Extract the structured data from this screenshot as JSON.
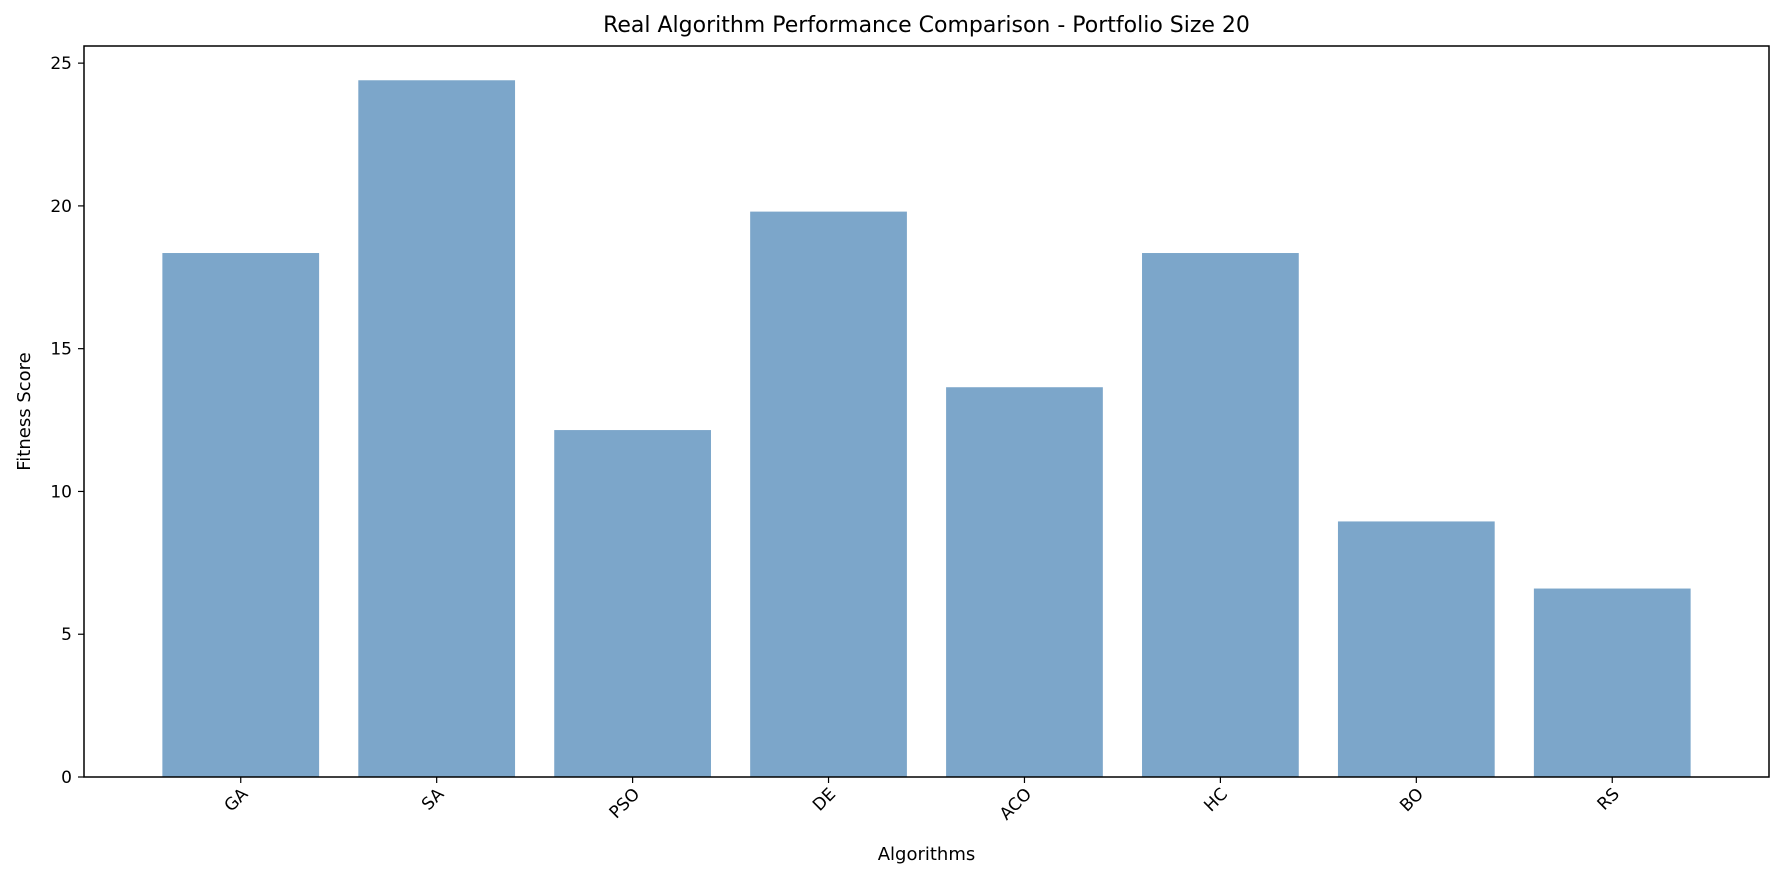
{
  "chart_data": {
    "type": "bar",
    "title": "Real Algorithm Performance Comparison - Portfolio Size 20",
    "xlabel": "Algorithms",
    "ylabel": "Fitness Score",
    "categories": [
      "GA",
      "SA",
      "PSO",
      "DE",
      "ACO",
      "HC",
      "BO",
      "RS"
    ],
    "values": [
      18.35,
      24.4,
      12.15,
      19.8,
      13.65,
      18.35,
      8.95,
      6.6
    ],
    "ylim": [
      0,
      25.6
    ],
    "yticks": [
      0,
      5,
      10,
      15,
      20,
      25
    ],
    "ytick_labels": [
      "0",
      "5",
      "10",
      "15",
      "20",
      "25"
    ],
    "xtick_rotation": 45,
    "bar_color": "#7ca6ca",
    "grid": false,
    "legend": "none"
  }
}
